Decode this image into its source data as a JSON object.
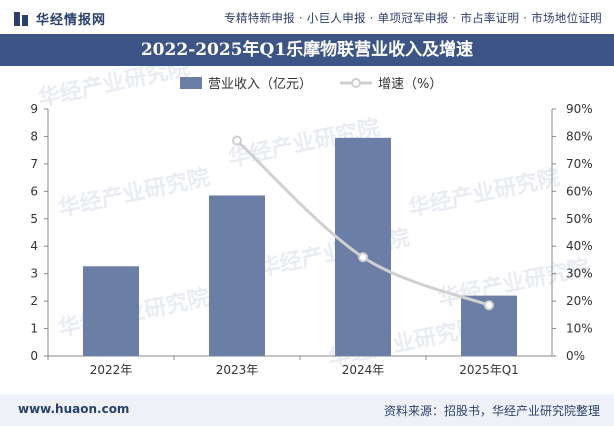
{
  "header": {
    "logo_text": "华经情报网",
    "tagline": "专精特新申报 · 小巨人申报 · 单项冠军申报 · 市占率证明 · 市场地位证明"
  },
  "title": "2022-2025年Q1乐摩物联营业收入及增速",
  "watermark": "华经产业研究院",
  "footer": {
    "url": "www.huaon.com",
    "source": "资料来源：招股书，华经产业研究院整理"
  },
  "colors": {
    "bar": "#6b7ea5",
    "line": "#d0d0d0",
    "title_bg": "#3d5486",
    "text": "#333333"
  },
  "chart_data": {
    "type": "bar",
    "categories": [
      "2022年",
      "2023年",
      "2024年",
      "2025年Q1"
    ],
    "series": [
      {
        "name": "营业收入（亿元）",
        "type": "bar",
        "axis": "left",
        "values": [
          3.27,
          5.85,
          7.95,
          2.2
        ]
      },
      {
        "name": "增速（%）",
        "type": "line",
        "axis": "right",
        "values": [
          null,
          78.5,
          36.0,
          18.5
        ]
      }
    ],
    "left_axis": {
      "ylim": [
        0,
        9
      ],
      "ticks": [
        "0",
        "1",
        "2",
        "3",
        "4",
        "5",
        "6",
        "7",
        "8",
        "9"
      ]
    },
    "right_axis": {
      "ylim": [
        0,
        90
      ],
      "ticks": [
        "0%",
        "10%",
        "20%",
        "30%",
        "40%",
        "50%",
        "60%",
        "70%",
        "80%",
        "90%"
      ]
    },
    "legend_position": "top-center"
  }
}
